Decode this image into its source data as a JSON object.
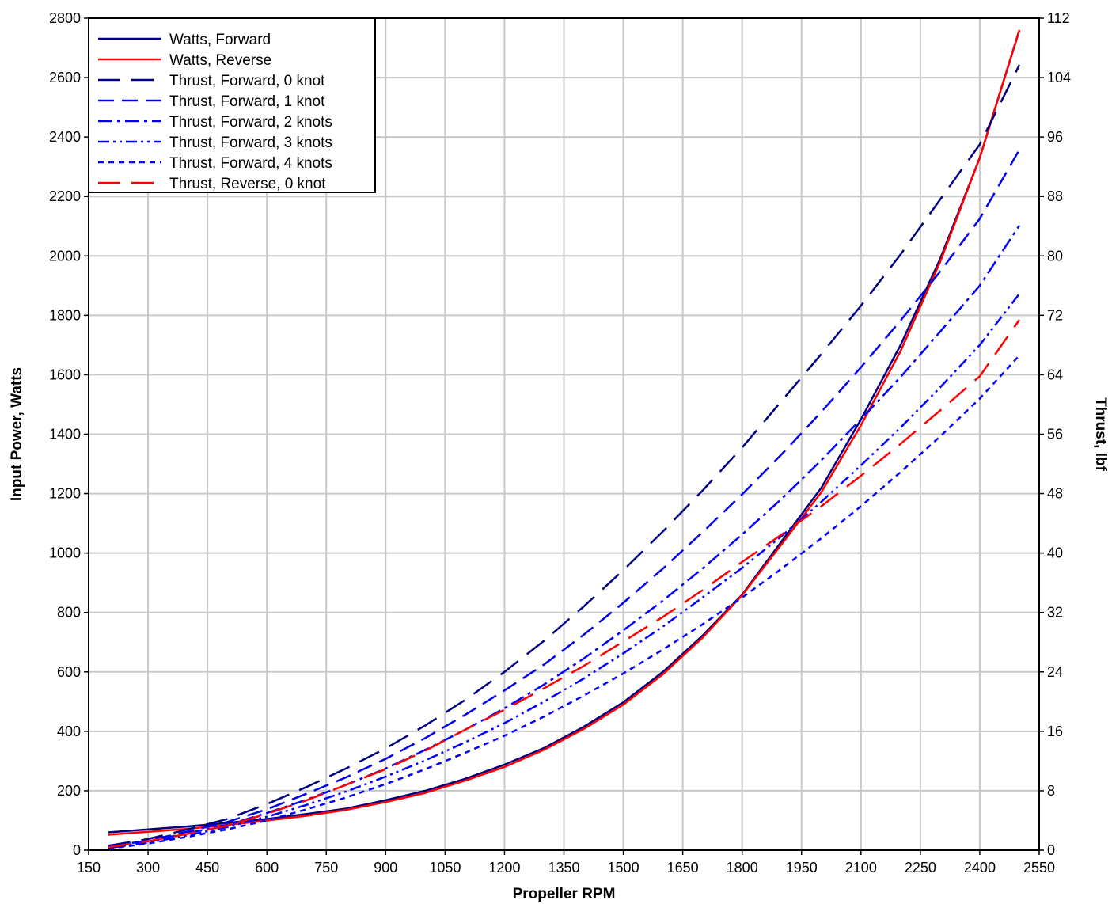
{
  "chart_data": {
    "type": "line",
    "xlabel": "Propeller RPM",
    "ylabel": "Input Power, Watts",
    "y2label": "Thrust, lbf",
    "xlim": [
      150,
      2550
    ],
    "ylim": [
      0,
      2800
    ],
    "y2lim": [
      0,
      112
    ],
    "x_ticks": [
      150,
      300,
      450,
      600,
      750,
      900,
      1050,
      1200,
      1350,
      1500,
      1650,
      1800,
      1950,
      2100,
      2250,
      2400,
      2550
    ],
    "y_ticks": [
      0,
      200,
      400,
      600,
      800,
      1000,
      1200,
      1400,
      1600,
      1800,
      2000,
      2200,
      2400,
      2600,
      2800
    ],
    "y2_ticks": [
      0,
      8,
      16,
      24,
      32,
      40,
      48,
      56,
      64,
      72,
      80,
      88,
      96,
      104,
      112
    ],
    "grid": true,
    "legend_position": "top-left",
    "series": [
      {
        "name": "Watts, Forward",
        "axis": "left",
        "color": "#000080",
        "dash": "solid",
        "x": [
          200,
          300,
          400,
          500,
          600,
          700,
          800,
          900,
          1000,
          1100,
          1200,
          1300,
          1400,
          1500,
          1600,
          1700,
          1800,
          1900,
          2000,
          2100,
          2200,
          2300,
          2400,
          2500
        ],
        "y": [
          60,
          70,
          80,
          92,
          105,
          122,
          140,
          168,
          200,
          240,
          288,
          344,
          415,
          498,
          600,
          722,
          860,
          1040,
          1220,
          1450,
          1700,
          1990,
          2330,
          2760
        ]
      },
      {
        "name": "Watts, Reverse",
        "axis": "left",
        "color": "#ff0000",
        "dash": "solid",
        "x": [
          200,
          300,
          400,
          500,
          600,
          700,
          800,
          900,
          1000,
          1100,
          1200,
          1300,
          1400,
          1500,
          1600,
          1700,
          1800,
          1900,
          2000,
          2100,
          2200,
          2300,
          2400,
          2500
        ],
        "y": [
          52,
          62,
          72,
          85,
          100,
          116,
          136,
          162,
          193,
          234,
          280,
          338,
          408,
          490,
          592,
          715,
          858,
          1030,
          1205,
          1430,
          1680,
          1980,
          2330,
          2760
        ]
      },
      {
        "name": "Thrust, Forward, 0 knot",
        "axis": "right",
        "color": "#000080",
        "dash": "28 14",
        "x": [
          200,
          300,
          400,
          500,
          600,
          700,
          800,
          900,
          1000,
          1100,
          1200,
          1300,
          1400,
          1500,
          1600,
          1700,
          1800,
          1900,
          2000,
          2100,
          2200,
          2300,
          2400,
          2500
        ],
        "y": [
          0.6,
          1.5,
          2.8,
          4.2,
          6.2,
          8.5,
          11.0,
          13.7,
          16.8,
          20.2,
          24.0,
          28.2,
          32.8,
          37.7,
          42.9,
          48.4,
          54.2,
          60.5,
          66.8,
          73.3,
          80.2,
          87.6,
          95.0,
          105.7
        ]
      },
      {
        "name": "Thrust, Forward, 1 knot",
        "axis": "right",
        "color": "#0000ee",
        "dash": "20 10",
        "x": [
          200,
          300,
          400,
          500,
          600,
          700,
          800,
          900,
          1000,
          1100,
          1200,
          1300,
          1400,
          1500,
          1600,
          1700,
          1800,
          1900,
          2000,
          2100,
          2200,
          2300,
          2400,
          2500
        ],
        "y": [
          0.5,
          1.3,
          2.5,
          3.8,
          5.5,
          7.6,
          9.8,
          12.3,
          15.1,
          18.2,
          21.5,
          25.0,
          29.0,
          33.3,
          37.9,
          42.8,
          47.9,
          53.3,
          59.0,
          65.0,
          71.3,
          77.9,
          85.0,
          94.3
        ]
      },
      {
        "name": "Thrust, Forward, 2 knots",
        "axis": "right",
        "color": "#0000ff",
        "dash": "18 6 4 6",
        "x": [
          200,
          300,
          400,
          500,
          600,
          700,
          800,
          900,
          1000,
          1100,
          1200,
          1300,
          1400,
          1500,
          1600,
          1700,
          1800,
          1900,
          2000,
          2100,
          2200,
          2300,
          2400,
          2500
        ],
        "y": [
          0.4,
          1.2,
          2.3,
          3.4,
          5.0,
          6.8,
          8.8,
          11.0,
          13.5,
          16.2,
          19.1,
          22.3,
          25.8,
          29.6,
          33.6,
          37.9,
          42.5,
          47.3,
          52.5,
          58.0,
          63.7,
          69.8,
          76.0,
          84.1
        ]
      },
      {
        "name": "Thrust, Forward, 3 knots",
        "axis": "right",
        "color": "#0000ff",
        "dash": "14 5 3 5 3 5",
        "x": [
          200,
          300,
          400,
          500,
          600,
          700,
          800,
          900,
          1000,
          1100,
          1200,
          1300,
          1400,
          1500,
          1600,
          1700,
          1800,
          1900,
          2000,
          2100,
          2200,
          2300,
          2400,
          2500
        ],
        "y": [
          0.3,
          1.0,
          2.0,
          3.1,
          4.5,
          6.1,
          7.9,
          9.9,
          12.1,
          14.5,
          17.1,
          20.0,
          23.1,
          26.5,
          30.1,
          34.0,
          38.0,
          42.3,
          46.9,
          51.8,
          56.9,
          62.3,
          68.0,
          74.9
        ]
      },
      {
        "name": "Thrust, Forward, 4 knots",
        "axis": "right",
        "color": "#0000ff",
        "dash": "7 6",
        "x": [
          200,
          300,
          400,
          500,
          600,
          700,
          800,
          900,
          1000,
          1100,
          1200,
          1300,
          1400,
          1500,
          1600,
          1700,
          1800,
          1900,
          2000,
          2100,
          2200,
          2300,
          2400,
          2500
        ],
        "y": [
          0.2,
          0.9,
          1.8,
          2.8,
          4.0,
          5.5,
          7.1,
          8.9,
          10.9,
          13.1,
          15.4,
          18.0,
          20.8,
          23.8,
          27.0,
          30.4,
          34.0,
          37.9,
          42.0,
          46.3,
          50.9,
          55.7,
          60.8,
          66.6
        ]
      },
      {
        "name": "Thrust, Reverse, 0 knot",
        "axis": "right",
        "color": "#ff0000",
        "dash": "28 14",
        "x": [
          200,
          300,
          400,
          500,
          600,
          700,
          800,
          900,
          1000,
          1100,
          1200,
          1300,
          1400,
          1500,
          1600,
          1700,
          1800,
          1900,
          2000,
          2100,
          2200,
          2300,
          2400,
          2500
        ],
        "y": [
          0.4,
          1.2,
          2.2,
          3.3,
          4.9,
          6.7,
          8.8,
          10.9,
          13.4,
          16.2,
          18.9,
          21.8,
          24.8,
          28.1,
          31.4,
          35.0,
          38.8,
          42.5,
          46.3,
          50.4,
          54.7,
          59.2,
          63.8,
          71.4
        ]
      }
    ]
  }
}
